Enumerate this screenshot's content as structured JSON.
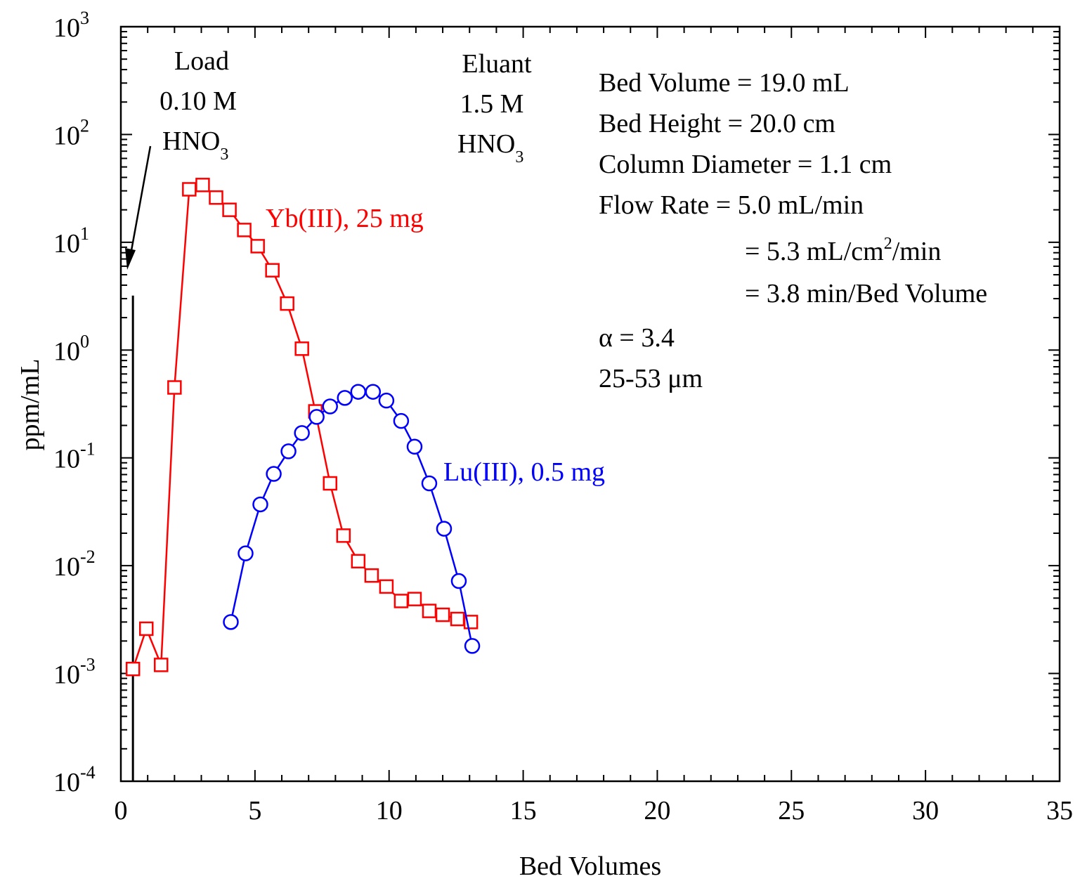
{
  "chart_data": {
    "type": "scatter",
    "xlabel": "Bed Volumes",
    "ylabel": "ppm/mL",
    "xlim": [
      0,
      35
    ],
    "ylim": [
      0.0001,
      1000
    ],
    "yscale": "log",
    "x_ticks": [
      0,
      5,
      10,
      15,
      20,
      25,
      30,
      35
    ],
    "y_ticks": [
      {
        "value": 0.0001,
        "base": "10",
        "exp": "-4"
      },
      {
        "value": 0.001,
        "base": "10",
        "exp": "-3"
      },
      {
        "value": 0.01,
        "base": "10",
        "exp": "-2"
      },
      {
        "value": 0.1,
        "base": "10",
        "exp": "-1"
      },
      {
        "value": 1,
        "base": "10",
        "exp": "0"
      },
      {
        "value": 10,
        "base": "10",
        "exp": "1"
      },
      {
        "value": 100,
        "base": "10",
        "exp": "2"
      },
      {
        "value": 1000,
        "base": "10",
        "exp": "3"
      }
    ],
    "grid": false,
    "series": [
      {
        "name": "Yb(III), 25 mg",
        "color": "#ff0000",
        "marker": "square",
        "x": [
          0.45,
          0.95,
          1.5,
          2.0,
          2.55,
          3.05,
          3.55,
          4.05,
          4.6,
          5.1,
          5.65,
          6.2,
          6.75,
          7.25,
          7.8,
          8.3,
          8.85,
          9.35,
          9.9,
          10.45,
          10.95,
          11.5,
          12.0,
          12.55,
          13.05
        ],
        "y": [
          0.0011,
          0.0026,
          0.0012,
          0.45,
          31,
          34,
          26,
          20,
          13,
          9.2,
          5.5,
          2.7,
          1.03,
          0.27,
          0.058,
          0.019,
          0.011,
          0.0081,
          0.0064,
          0.0047,
          0.0049,
          0.0038,
          0.0035,
          0.0032,
          0.003
        ]
      },
      {
        "name": "Lu(III), 0.5 mg",
        "color": "#0000ff",
        "marker": "circle",
        "x": [
          4.1,
          4.65,
          5.2,
          5.7,
          6.25,
          6.75,
          7.3,
          7.8,
          8.35,
          8.85,
          9.4,
          9.9,
          10.45,
          10.95,
          11.5,
          12.05,
          12.6,
          13.1
        ],
        "y": [
          0.003,
          0.013,
          0.037,
          0.071,
          0.115,
          0.17,
          0.24,
          0.3,
          0.36,
          0.41,
          0.41,
          0.34,
          0.22,
          0.127,
          0.058,
          0.022,
          0.0072,
          0.0018
        ]
      }
    ],
    "load_line_x": 0.45,
    "load_line_y_top": 3.2,
    "annotations": {
      "load": [
        "Load",
        "0.10 M",
        "HNO",
        "3"
      ],
      "eluant": [
        "Eluant",
        "1.5 M",
        "HNO",
        "3"
      ],
      "conditions": [
        "Bed Volume = 19.0 mL",
        "Bed Height = 20.0 cm",
        "Column Diameter = 1.1 cm",
        "Flow Rate = 5.0 mL/min"
      ],
      "flow2_pre": "= 5.3 mL/cm",
      "flow2_sup": "2",
      "flow2_post": "/min",
      "flow3": "= 3.8 min/Bed Volume",
      "alpha": "α = 3.4",
      "particle": "25-53 μm"
    }
  }
}
